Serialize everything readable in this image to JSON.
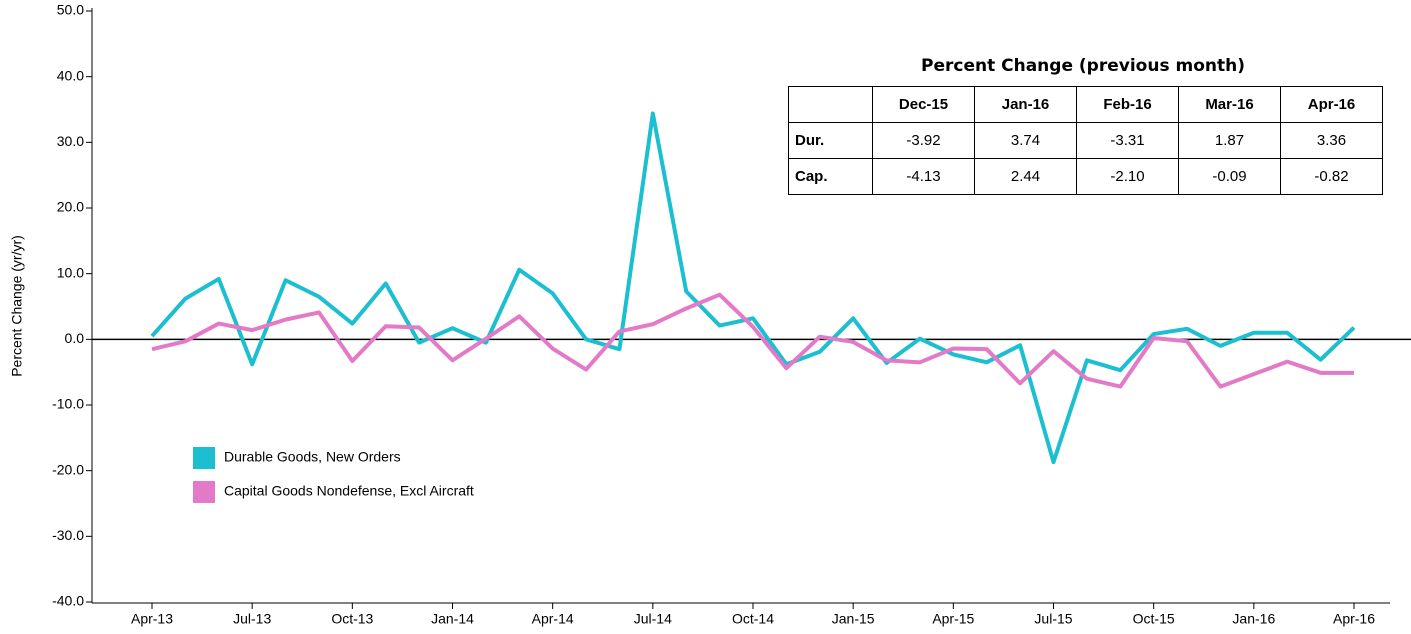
{
  "chart_data": {
    "type": "line",
    "y_label": "Percent Change (yr/yr)",
    "categories": [
      "Apr-13",
      null,
      null,
      "Jul-13",
      null,
      null,
      "Oct-13",
      null,
      null,
      "Jan-14",
      null,
      null,
      "Apr-14",
      null,
      null,
      "Jul-14",
      null,
      null,
      "Oct-14",
      null,
      null,
      "Jan-15",
      null,
      null,
      "Apr-15",
      null,
      null,
      "Jul-15",
      null,
      null,
      "Oct-15",
      null,
      null,
      "Jan-16",
      null,
      null,
      "Apr-16"
    ],
    "series": [
      {
        "name": "Durable Goods, New Orders",
        "color": "#1bbfcf",
        "values": [
          0.5,
          6.2,
          9.2,
          -3.8,
          9.0,
          6.5,
          2.4,
          8.5,
          -0.5,
          1.7,
          -0.5,
          10.6,
          7.0,
          0.0,
          -1.5,
          34.4,
          7.3,
          2.1,
          3.2,
          -3.8,
          -1.9,
          3.2,
          -3.6,
          0.1,
          -2.3,
          -3.5,
          -0.9,
          -18.7,
          -3.2,
          -4.7,
          0.8,
          1.6,
          -1.0,
          1.0,
          1.0,
          -3.1,
          1.8
        ]
      },
      {
        "name": "Capital Goods Nondefense, Excl Aircraft",
        "color": "#e37ac8",
        "values": [
          -1.5,
          -0.3,
          2.4,
          1.4,
          3.0,
          4.1,
          -3.3,
          2.0,
          1.8,
          -3.2,
          0.1,
          3.5,
          -1.4,
          -4.6,
          1.2,
          2.3,
          4.7,
          6.8,
          1.9,
          -4.4,
          0.4,
          -0.4,
          -3.2,
          -3.5,
          -1.4,
          -1.5,
          -6.7,
          -1.8,
          -6.0,
          -7.2,
          0.2,
          -0.3,
          -7.2,
          -5.3,
          -3.4,
          -5.1,
          -5.1
        ]
      }
    ],
    "ylim": [
      -40,
      50
    ],
    "yticks": [
      {
        "value": -40,
        "label": "-40.0"
      },
      {
        "value": -30,
        "label": "-30.0"
      },
      {
        "value": -20,
        "label": "-20.0"
      },
      {
        "value": -10,
        "label": "-10.0"
      },
      {
        "value": 0,
        "label": "0.0"
      },
      {
        "value": 10,
        "label": "10.0"
      },
      {
        "value": 20,
        "label": "20.0"
      },
      {
        "value": 30,
        "label": "30.0"
      },
      {
        "value": 40,
        "label": "40.0"
      },
      {
        "value": 50,
        "label": "50.0"
      }
    ],
    "legend": "lower left",
    "grid": false
  },
  "table": {
    "title": "Percent Change (previous month)",
    "columns": [
      "Dec-15",
      "Jan-16",
      "Feb-16",
      "Mar-16",
      "Apr-16"
    ],
    "rows": [
      {
        "label": "Dur.",
        "values": [
          "-3.92",
          "3.74",
          "-3.31",
          "1.87",
          "3.36"
        ]
      },
      {
        "label": "Cap.",
        "values": [
          "-4.13",
          "2.44",
          "-2.10",
          "-0.09",
          "-0.82"
        ]
      }
    ]
  }
}
